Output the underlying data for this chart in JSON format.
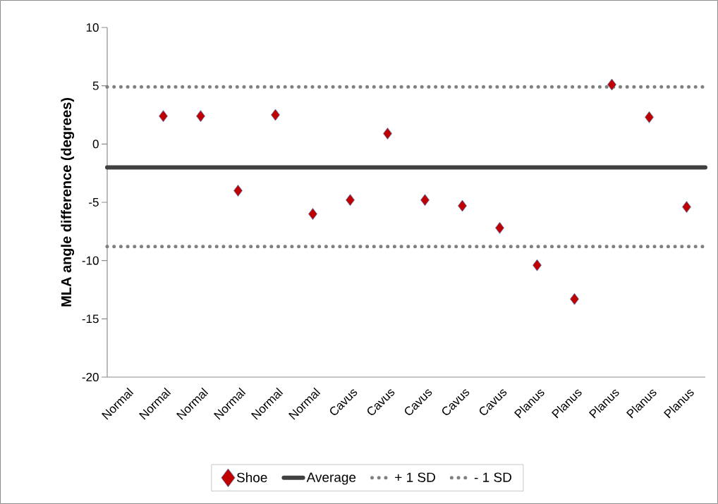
{
  "chart_data": {
    "type": "scatter",
    "ylabel": "MLA angle difference (degrees)",
    "categories": [
      "Normal",
      "Normal",
      "Normal",
      "Normal",
      "Normal",
      "Normal",
      "Cavus",
      "Cavus",
      "Cavus",
      "Cavus",
      "Cavus",
      "Planus",
      "Planus",
      "Planus",
      "Planus",
      "Planus"
    ],
    "series": [
      {
        "name": "Shoe",
        "color": "#c00000",
        "values": [
          null,
          2.4,
          2.4,
          -4.0,
          2.5,
          -6.0,
          -4.8,
          0.9,
          -4.8,
          -5.3,
          -7.2,
          -10.4,
          -13.3,
          5.1,
          2.3,
          -5.4
        ]
      }
    ],
    "ylim": [
      -20,
      10
    ],
    "yticks": [
      -20,
      -15,
      -10,
      -5,
      0,
      5,
      10
    ],
    "marker": "diamond",
    "legend": "bottom",
    "ref_lines": [
      {
        "axis": "y",
        "value": -2.0,
        "label": "Average",
        "color": "#404040",
        "line_style": "solid"
      },
      {
        "axis": "y",
        "value": 4.9,
        "label": "+ 1 SD",
        "color": "#808080",
        "line_style": "dotted"
      },
      {
        "axis": "y",
        "value": -8.8,
        "label": "- 1 SD",
        "color": "#808080",
        "line_style": "dotted"
      }
    ]
  }
}
